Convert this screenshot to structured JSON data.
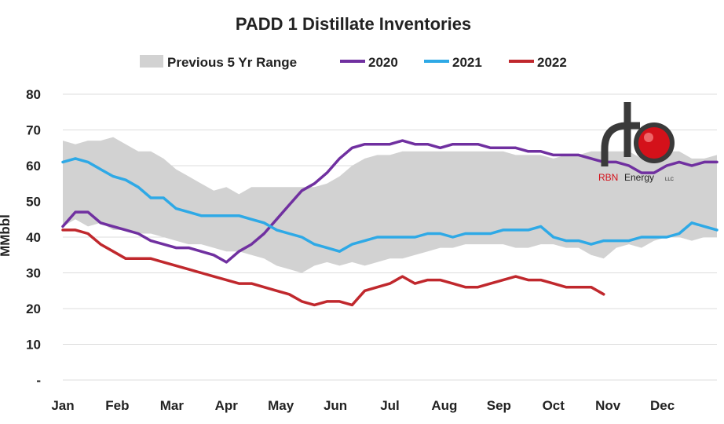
{
  "chart_data": {
    "type": "line",
    "title": "PADD 1 Distillate Inventories",
    "ylabel": "MMbbl",
    "xlabel": "",
    "ylim": [
      0,
      80
    ],
    "y_ticks": [
      0,
      10,
      20,
      30,
      40,
      50,
      60,
      70,
      80
    ],
    "y_tick_labels": [
      "-",
      "10",
      "20",
      "30",
      "40",
      "50",
      "60",
      "70",
      "80"
    ],
    "grid": true,
    "legend_position": "top",
    "months": [
      "Jan",
      "Feb",
      "Mar",
      "Apr",
      "May",
      "Jun",
      "Jul",
      "Aug",
      "Sep",
      "Oct",
      "Nov",
      "Dec"
    ],
    "x_unit": "week of year",
    "range": {
      "name": "Previous 5 Yr Range",
      "color": "#d2d2d2",
      "weeks": [
        0,
        1,
        2,
        3,
        4,
        5,
        6,
        7,
        8,
        9,
        10,
        11,
        12,
        13,
        14,
        15,
        16,
        17,
        18,
        19,
        20,
        21,
        22,
        23,
        24,
        25,
        26,
        27,
        28,
        29,
        30,
        31,
        32,
        33,
        34,
        35,
        36,
        37,
        38,
        39,
        40,
        41,
        42,
        43,
        44,
        45,
        46,
        47,
        48,
        49,
        50,
        51,
        52
      ],
      "high": [
        67,
        66,
        67,
        67,
        68,
        66,
        64,
        64,
        62,
        59,
        57,
        55,
        53,
        54,
        52,
        54,
        54,
        54,
        54,
        54,
        54,
        55,
        57,
        60,
        62,
        63,
        63,
        64,
        64,
        64,
        64,
        64,
        64,
        64,
        64,
        64,
        63,
        63,
        63,
        62,
        63,
        63,
        64,
        64,
        64,
        64,
        62,
        62,
        64,
        64,
        62,
        62,
        63
      ],
      "low": [
        43,
        45,
        43,
        44,
        42,
        42,
        41,
        41,
        40,
        39,
        38,
        38,
        37,
        36,
        36,
        35,
        34,
        32,
        31,
        30,
        32,
        33,
        32,
        33,
        32,
        33,
        34,
        34,
        35,
        36,
        37,
        37,
        38,
        38,
        38,
        38,
        37,
        37,
        38,
        38,
        37,
        37,
        35,
        34,
        37,
        38,
        37,
        39,
        40,
        40,
        39,
        40,
        40
      ]
    },
    "series": [
      {
        "name": "2020",
        "color": "#7030a0",
        "weeks": [
          0,
          1,
          2,
          3,
          4,
          5,
          6,
          7,
          8,
          9,
          10,
          11,
          12,
          13,
          14,
          15,
          16,
          17,
          18,
          19,
          20,
          21,
          22,
          23,
          24,
          25,
          26,
          27,
          28,
          29,
          30,
          31,
          32,
          33,
          34,
          35,
          36,
          37,
          38,
          39,
          40,
          41,
          42,
          43,
          44,
          45,
          46,
          47,
          48,
          49,
          50,
          51,
          52
        ],
        "values": [
          43,
          47,
          47,
          44,
          43,
          42,
          41,
          39,
          38,
          37,
          37,
          36,
          35,
          33,
          36,
          38,
          41,
          45,
          49,
          53,
          55,
          58,
          62,
          65,
          66,
          66,
          66,
          67,
          66,
          66,
          65,
          66,
          66,
          66,
          65,
          65,
          65,
          64,
          64,
          63,
          63,
          63,
          62,
          61,
          61,
          60,
          58,
          58,
          60,
          61,
          60,
          61,
          61
        ]
      },
      {
        "name": "2021",
        "color": "#2ea9e6",
        "weeks": [
          0,
          1,
          2,
          3,
          4,
          5,
          6,
          7,
          8,
          9,
          10,
          11,
          12,
          13,
          14,
          15,
          16,
          17,
          18,
          19,
          20,
          21,
          22,
          23,
          24,
          25,
          26,
          27,
          28,
          29,
          30,
          31,
          32,
          33,
          34,
          35,
          36,
          37,
          38,
          39,
          40,
          41,
          42,
          43,
          44,
          45,
          46,
          47,
          48,
          49,
          50,
          51,
          52
        ],
        "values": [
          61,
          62,
          61,
          59,
          57,
          56,
          54,
          51,
          51,
          48,
          47,
          46,
          46,
          46,
          46,
          45,
          44,
          42,
          41,
          40,
          38,
          37,
          36,
          38,
          39,
          40,
          40,
          40,
          40,
          41,
          41,
          40,
          41,
          41,
          41,
          42,
          42,
          42,
          43,
          40,
          39,
          39,
          38,
          39,
          39,
          39,
          40,
          40,
          40,
          41,
          44,
          43,
          42
        ]
      },
      {
        "name": "2022",
        "color": "#c0282d",
        "weeks": [
          0,
          1,
          2,
          3,
          4,
          5,
          6,
          7,
          8,
          9,
          10,
          11,
          12,
          13,
          14,
          15,
          16,
          17,
          18,
          19,
          20,
          21,
          22,
          23,
          24,
          25,
          26,
          27,
          28,
          29,
          30,
          31,
          32,
          33,
          34,
          35,
          36,
          37,
          38,
          39,
          40,
          41,
          42,
          43
        ],
        "values": [
          42,
          42,
          41,
          38,
          36,
          34,
          34,
          34,
          33,
          32,
          31,
          30,
          29,
          28,
          27,
          27,
          26,
          25,
          24,
          22,
          21,
          22,
          22,
          21,
          25,
          26,
          27,
          29,
          27,
          28,
          28,
          27,
          26,
          26,
          27,
          28,
          29,
          28,
          28,
          27,
          26,
          26,
          26,
          24
        ]
      }
    ]
  },
  "logo": {
    "brand_red": "RBN",
    "brand_rest": "Energy",
    "suffix": "LLC",
    "colors": {
      "pipe": "#3a3a3a",
      "ball": "#d4111a"
    }
  }
}
